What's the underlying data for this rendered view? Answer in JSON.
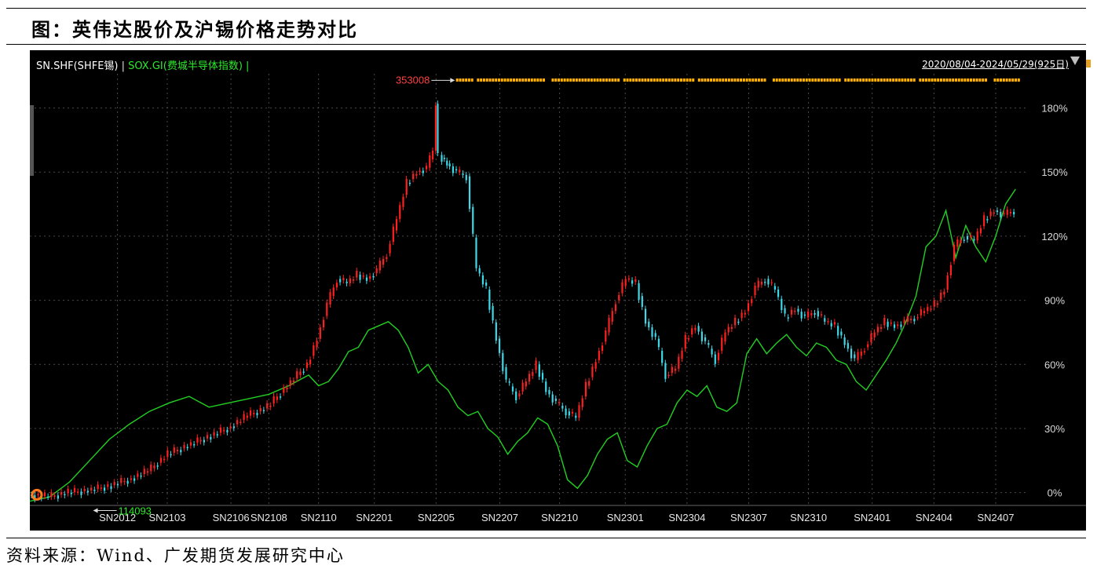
{
  "figure_title": "图：英伟达股价及沪锡价格走势对比",
  "source_note": "资料来源：Wind、广发期货发展研究中心",
  "colors": {
    "up": "#ff2020",
    "down": "#3fd8e8",
    "sox": "#22d022",
    "grid": "#4a4a4a",
    "marker": "#ffb000"
  },
  "chart_data": {
    "type": "line",
    "title": "",
    "legend": {
      "series_a": "SN.SHF(SHFE锡)",
      "separator": "|",
      "series_b": "SOX.GI(费城半导体指数)",
      "separator_end": "|"
    },
    "date_range": "2020/08/04-2024/05/29(925日)",
    "y_axis": {
      "ticks": [
        "0%",
        "30%",
        "60%",
        "90%",
        "120%",
        "150%",
        "180%"
      ],
      "tick_values": [
        0,
        30,
        60,
        90,
        120,
        150,
        180
      ],
      "ylim": [
        -6,
        196
      ]
    },
    "x_axis": {
      "ticks": [
        "SN2012",
        "SN2103",
        "SN2106",
        "SN2108",
        "SN2110",
        "SN2201",
        "SN2205",
        "SN2207",
        "SN2210",
        "SN2301",
        "SN2304",
        "SN2307",
        "SN2310",
        "SN2401",
        "SN2404",
        "SN2407"
      ],
      "tick_positions": [
        44,
        69,
        101,
        120,
        145,
        173,
        204,
        236,
        266,
        299,
        330,
        361,
        391,
        423,
        454,
        485
      ],
      "xlim": [
        0,
        500
      ]
    },
    "annotations": {
      "max_label": "353008",
      "max_x": 204,
      "max_y": 190,
      "min_label": "114093",
      "min_x": 14,
      "min_y": -4
    },
    "marker_strip": {
      "x_start": 214,
      "x_end": 496
    },
    "series": [
      {
        "name": "SN.SHF(SHFE锡)",
        "style": "candles",
        "x": [
          0,
          10,
          20,
          30,
          40,
          50,
          60,
          70,
          80,
          90,
          100,
          110,
          120,
          130,
          140,
          145,
          150,
          155,
          160,
          165,
          170,
          175,
          180,
          185,
          190,
          195,
          200,
          203,
          204,
          206,
          210,
          215,
          220,
          225,
          230,
          235,
          240,
          245,
          250,
          255,
          260,
          265,
          270,
          275,
          280,
          285,
          290,
          295,
          300,
          305,
          310,
          315,
          320,
          325,
          330,
          335,
          340,
          345,
          350,
          355,
          360,
          365,
          370,
          375,
          380,
          385,
          390,
          395,
          400,
          405,
          410,
          415,
          420,
          425,
          430,
          435,
          440,
          445,
          450,
          455,
          460,
          465,
          470,
          475,
          480,
          485,
          490,
          495
        ],
        "y": [
          -1,
          -2,
          0,
          1,
          3,
          6,
          10,
          18,
          22,
          26,
          30,
          36,
          40,
          50,
          60,
          72,
          88,
          100,
          98,
          102,
          100,
          104,
          112,
          128,
          145,
          150,
          152,
          160,
          182,
          158,
          154,
          150,
          148,
          105,
          95,
          72,
          52,
          45,
          52,
          60,
          48,
          42,
          38,
          35,
          50,
          62,
          75,
          90,
          100,
          98,
          80,
          72,
          55,
          58,
          72,
          78,
          70,
          62,
          75,
          80,
          85,
          96,
          100,
          95,
          82,
          86,
          82,
          85,
          80,
          78,
          70,
          62,
          68,
          75,
          80,
          78,
          80,
          82,
          85,
          88,
          95,
          115,
          120,
          118,
          128,
          132,
          130,
          132
        ]
      },
      {
        "name": "SOX.GI(费城半导体指数)",
        "style": "line",
        "x": [
          0,
          10,
          20,
          30,
          40,
          50,
          60,
          70,
          80,
          90,
          100,
          110,
          120,
          130,
          140,
          145,
          150,
          155,
          160,
          165,
          170,
          175,
          180,
          185,
          190,
          195,
          200,
          205,
          210,
          215,
          220,
          225,
          230,
          235,
          240,
          245,
          250,
          255,
          260,
          265,
          270,
          275,
          280,
          285,
          290,
          295,
          300,
          305,
          310,
          315,
          320,
          325,
          330,
          335,
          340,
          345,
          350,
          355,
          360,
          365,
          370,
          375,
          380,
          385,
          390,
          395,
          400,
          405,
          410,
          415,
          420,
          425,
          430,
          435,
          440,
          445,
          450,
          455,
          460,
          465,
          470,
          475,
          480,
          485,
          490,
          495
        ],
        "y": [
          -4,
          -2,
          5,
          15,
          25,
          32,
          38,
          42,
          45,
          40,
          42,
          44,
          46,
          50,
          55,
          50,
          52,
          58,
          66,
          68,
          76,
          78,
          80,
          76,
          68,
          56,
          60,
          52,
          48,
          40,
          36,
          38,
          30,
          26,
          18,
          24,
          28,
          35,
          32,
          22,
          6,
          2,
          8,
          18,
          25,
          28,
          15,
          12,
          22,
          30,
          32,
          42,
          48,
          45,
          50,
          40,
          38,
          42,
          65,
          72,
          65,
          70,
          74,
          68,
          64,
          70,
          68,
          62,
          60,
          52,
          48,
          55,
          62,
          70,
          80,
          92,
          115,
          120,
          132,
          110,
          125,
          115,
          108,
          120,
          135,
          142
        ]
      }
    ]
  }
}
